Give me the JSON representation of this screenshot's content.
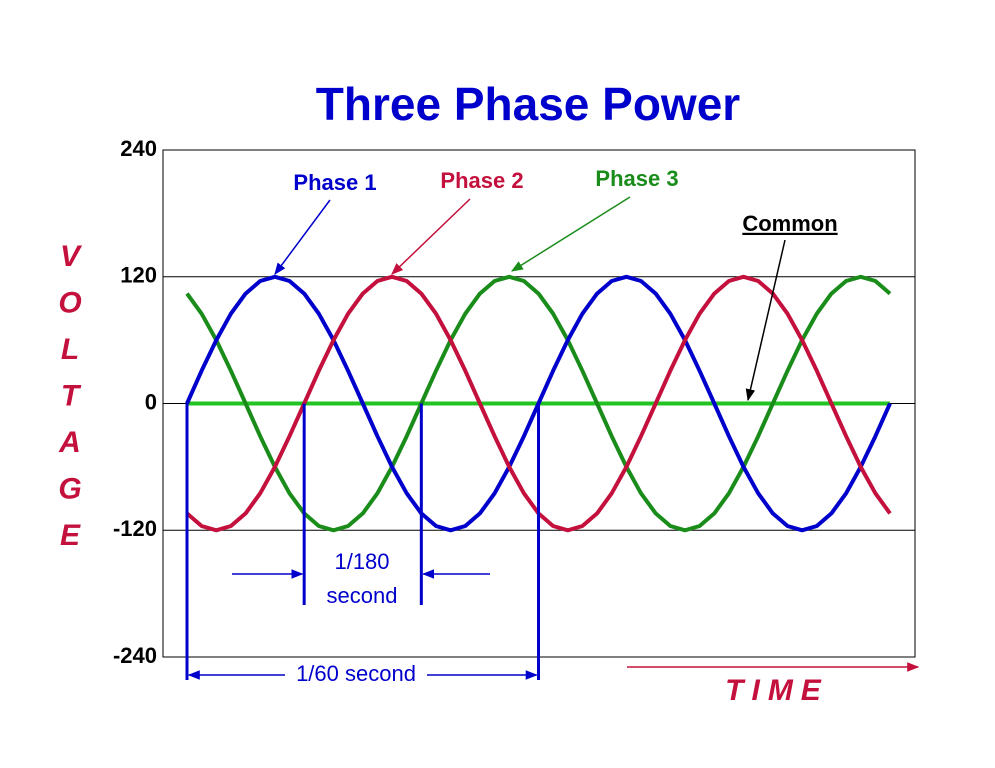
{
  "chart_data": {
    "type": "line",
    "title": "Three Phase Power",
    "y_label": "VOLTAGE",
    "x_label": "TIME",
    "ylim": [
      -240,
      240
    ],
    "yticks": [
      -240,
      -120,
      0,
      120,
      240
    ],
    "grid": true,
    "categories": [
      null,
      null,
      null,
      null,
      null,
      null,
      null,
      null,
      null,
      null,
      null,
      null,
      null,
      null,
      null,
      null,
      null,
      null,
      null,
      null,
      null,
      null,
      null,
      null,
      null,
      null,
      null,
      null,
      null,
      null,
      null,
      null,
      null,
      null,
      null,
      null,
      null,
      null,
      null,
      null,
      null,
      null,
      null,
      null,
      null,
      null,
      null,
      null,
      null
    ],
    "series": [
      {
        "name": "Phase 1",
        "color": "#0000cc",
        "values": [
          0,
          31,
          60,
          85,
          104,
          116,
          120,
          116,
          104,
          85,
          60,
          31,
          0,
          -31,
          -60,
          -85,
          -104,
          -116,
          -120,
          -116,
          -104,
          -85,
          -60,
          -31,
          0,
          31,
          60,
          85,
          104,
          116,
          120,
          116,
          104,
          85,
          60,
          31,
          0,
          -31,
          -60,
          -85,
          -104,
          -116,
          -120,
          -116,
          -104,
          -85,
          -60,
          -31,
          0
        ]
      },
      {
        "name": "Phase 2",
        "color": "#c4103c",
        "values": [
          -104,
          -116,
          -120,
          -116,
          -104,
          -85,
          -60,
          -31,
          0,
          31,
          60,
          85,
          104,
          116,
          120,
          116,
          104,
          85,
          60,
          31,
          0,
          -31,
          -60,
          -85,
          -104,
          -116,
          -120,
          -116,
          -104,
          -85,
          -60,
          -31,
          0,
          31,
          60,
          85,
          104,
          116,
          120,
          116,
          104,
          85,
          60,
          31,
          0,
          -31,
          -60,
          -85,
          -104
        ]
      },
      {
        "name": "Phase 3",
        "color": "#1a8c1a",
        "values": [
          104,
          85,
          60,
          31,
          0,
          -31,
          -60,
          -85,
          -104,
          -116,
          -120,
          -116,
          -104,
          -85,
          -60,
          -31,
          0,
          31,
          60,
          85,
          104,
          116,
          120,
          116,
          104,
          85,
          60,
          31,
          0,
          -31,
          -60,
          -85,
          -104,
          -116,
          -120,
          -116,
          -104,
          -85,
          -60,
          -31,
          0,
          31,
          60,
          85,
          104,
          116,
          120,
          116,
          104
        ]
      },
      {
        "name": "Common",
        "color": "#22c322",
        "values": [
          0,
          0,
          0,
          0,
          0,
          0,
          0,
          0,
          0,
          0,
          0,
          0,
          0,
          0,
          0,
          0,
          0,
          0,
          0,
          0,
          0,
          0,
          0,
          0,
          0,
          0,
          0,
          0,
          0,
          0,
          0,
          0,
          0,
          0,
          0,
          0,
          0,
          0,
          0,
          0,
          0,
          0,
          0,
          0,
          0,
          0,
          0,
          0,
          0
        ]
      }
    ],
    "annotations": {
      "third_period": [
        "1/180",
        "second"
      ],
      "full_period": "1/60 second"
    }
  }
}
